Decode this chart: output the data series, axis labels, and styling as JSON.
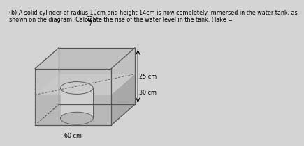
{
  "bg_color": "#d4d4d4",
  "box_color": "#555555",
  "water_front_color": "#b8b8b8",
  "water_top_color": "#c8c8c8",
  "water_right_color": "#a8a8a8",
  "back_wall_color": "#c0c0c0",
  "cyl_body_color": "#d0d0d0",
  "cyl_top_color": "#cccccc",
  "cyl_bot_color": "#b8b8b8",
  "label_25cm": "25 cm",
  "label_30cm": "30 cm",
  "label_60cm": "60 cm",
  "text_line1": "(b) A solid cylinder of radius 10cm and height 14cm is now completely immersed in the water tank, as",
  "text_line2_pre": "shown on the diagram. Calculate the rise of the water level in the tank. (Take =",
  "text_frac_num": "22",
  "text_frac_den": "7",
  "text_line2_post": ")"
}
